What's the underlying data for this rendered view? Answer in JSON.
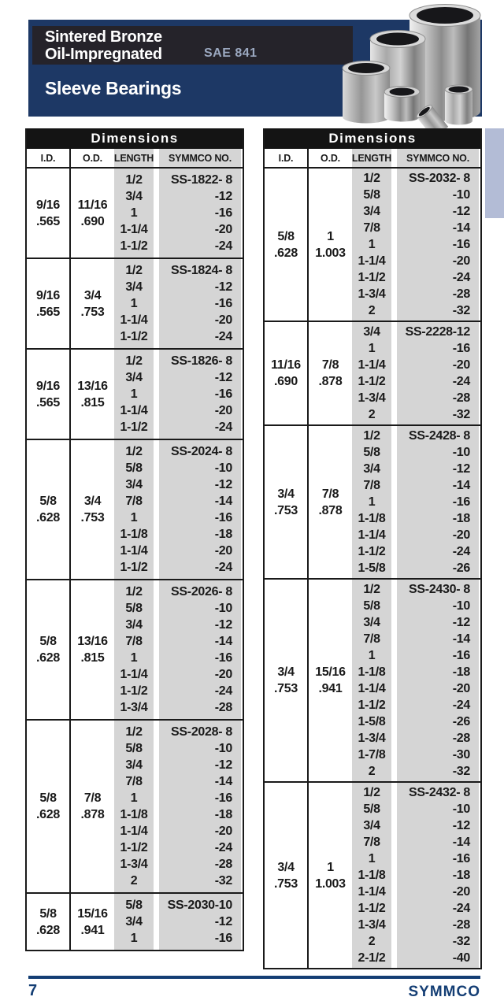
{
  "header": {
    "title_line1": "Sintered Bronze",
    "title_line2": "Oil-Impregnated",
    "sae_code": "SAE 841",
    "product": "Sleeve Bearings",
    "photo_alt": "sintered-bronze-sleeve-bearings-photo"
  },
  "footer": {
    "page_number": "7",
    "brand": "SYMMCO"
  },
  "colors": {
    "navy": "#1d3865",
    "band_black": "#25232a",
    "table_black": "#141414",
    "column_gray": "#d5d5d5",
    "side_tab": "#b3bcd6",
    "footer_navy": "#143e74",
    "sae_text": "#9ba8c0"
  },
  "tables": [
    {
      "title": "Dimensions",
      "columns": [
        "I.D.",
        "O.D.",
        "LENGTH",
        "SYMMCO NO."
      ],
      "groups": [
        {
          "id": [
            "9/16",
            ".565"
          ],
          "od": [
            "11/16",
            ".690"
          ],
          "lengths": [
            "1/2",
            "3/4",
            "1",
            "1-1/4",
            "1-1/2"
          ],
          "symmco": [
            "SS-1822- 8",
            "-12",
            "-16",
            "-20",
            "-24"
          ]
        },
        {
          "id": [
            "9/16",
            ".565"
          ],
          "od": [
            "3/4",
            ".753"
          ],
          "lengths": [
            "1/2",
            "3/4",
            "1",
            "1-1/4",
            "1-1/2"
          ],
          "symmco": [
            "SS-1824- 8",
            "-12",
            "-16",
            "-20",
            "-24"
          ]
        },
        {
          "id": [
            "9/16",
            ".565"
          ],
          "od": [
            "13/16",
            ".815"
          ],
          "lengths": [
            "1/2",
            "3/4",
            "1",
            "1-1/4",
            "1-1/2"
          ],
          "symmco": [
            "SS-1826- 8",
            "-12",
            "-16",
            "-20",
            "-24"
          ]
        },
        {
          "id": [
            "5/8",
            ".628"
          ],
          "od": [
            "3/4",
            ".753"
          ],
          "lengths": [
            "1/2",
            "5/8",
            "3/4",
            "7/8",
            "1",
            "1-1/8",
            "1-1/4",
            "1-1/2"
          ],
          "symmco": [
            "SS-2024- 8",
            "-10",
            "-12",
            "-14",
            "-16",
            "-18",
            "-20",
            "-24"
          ]
        },
        {
          "id": [
            "5/8",
            ".628"
          ],
          "od": [
            "13/16",
            ".815"
          ],
          "lengths": [
            "1/2",
            "5/8",
            "3/4",
            "7/8",
            "1",
            "1-1/4",
            "1-1/2",
            "1-3/4"
          ],
          "symmco": [
            "SS-2026- 8",
            "-10",
            "-12",
            "-14",
            "-16",
            "-20",
            "-24",
            "-28"
          ]
        },
        {
          "id": [
            "5/8",
            ".628"
          ],
          "od": [
            "7/8",
            ".878"
          ],
          "lengths": [
            "1/2",
            "5/8",
            "3/4",
            "7/8",
            "1",
            "1-1/8",
            "1-1/4",
            "1-1/2",
            "1-3/4",
            "2"
          ],
          "symmco": [
            "SS-2028- 8",
            "-10",
            "-12",
            "-14",
            "-16",
            "-18",
            "-20",
            "-24",
            "-28",
            "-32"
          ]
        },
        {
          "id": [
            "5/8",
            ".628"
          ],
          "od": [
            "15/16",
            ".941"
          ],
          "lengths": [
            "5/8",
            "3/4",
            "1"
          ],
          "symmco": [
            "SS-2030-10",
            "-12",
            "-16"
          ]
        }
      ]
    },
    {
      "title": "Dimensions",
      "columns": [
        "I.D.",
        "O.D.",
        "LENGTH",
        "SYMMCO NO."
      ],
      "groups": [
        {
          "id": [
            "5/8",
            ".628"
          ],
          "od": [
            "1",
            "1.003"
          ],
          "lengths": [
            "1/2",
            "5/8",
            "3/4",
            "7/8",
            "1",
            "1-1/4",
            "1-1/2",
            "1-3/4",
            "2"
          ],
          "symmco": [
            "SS-2032- 8",
            "-10",
            "-12",
            "-14",
            "-16",
            "-20",
            "-24",
            "-28",
            "-32"
          ]
        },
        {
          "id": [
            "11/16",
            ".690"
          ],
          "od": [
            "7/8",
            ".878"
          ],
          "lengths": [
            "3/4",
            "1",
            "1-1/4",
            "1-1/2",
            "1-3/4",
            "2"
          ],
          "symmco": [
            "SS-2228-12",
            "-16",
            "-20",
            "-24",
            "-28",
            "-32"
          ]
        },
        {
          "id": [
            "3/4",
            ".753"
          ],
          "od": [
            "7/8",
            ".878"
          ],
          "lengths": [
            "1/2",
            "5/8",
            "3/4",
            "7/8",
            "1",
            "1-1/8",
            "1-1/4",
            "1-1/2",
            "1-5/8"
          ],
          "symmco": [
            "SS-2428- 8",
            "-10",
            "-12",
            "-14",
            "-16",
            "-18",
            "-20",
            "-24",
            "-26"
          ]
        },
        {
          "id": [
            "3/4",
            ".753"
          ],
          "od": [
            "15/16",
            ".941"
          ],
          "lengths": [
            "1/2",
            "5/8",
            "3/4",
            "7/8",
            "1",
            "1-1/8",
            "1-1/4",
            "1-1/2",
            "1-5/8",
            "1-3/4",
            "1-7/8",
            "2"
          ],
          "symmco": [
            "SS-2430- 8",
            "-10",
            "-12",
            "-14",
            "-16",
            "-18",
            "-20",
            "-24",
            "-26",
            "-28",
            "-30",
            "-32"
          ]
        },
        {
          "id": [
            "3/4",
            ".753"
          ],
          "od": [
            "1",
            "1.003"
          ],
          "lengths": [
            "1/2",
            "5/8",
            "3/4",
            "7/8",
            "1",
            "1-1/8",
            "1-1/4",
            "1-1/2",
            "1-3/4",
            "2",
            "2-1/2"
          ],
          "symmco": [
            "SS-2432- 8",
            "-10",
            "-12",
            "-14",
            "-16",
            "-18",
            "-20",
            "-24",
            "-28",
            "-32",
            "-40"
          ]
        }
      ]
    }
  ]
}
